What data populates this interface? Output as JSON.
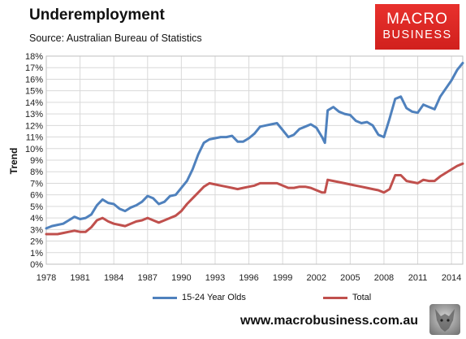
{
  "title": "Underemployment",
  "subtitle": "Source: Australian Bureau of Statistics",
  "logo": {
    "line1": "MACRO",
    "line2": "BUSINESS"
  },
  "footer_url": "www.macrobusiness.com.au",
  "colors": {
    "youth": "#4f81bd",
    "total": "#c0504d",
    "grid": "#d9d9d9",
    "logo": "#e8312d"
  },
  "chart_data": {
    "type": "line",
    "ylabel": "Trend",
    "xlim": [
      1978,
      2015
    ],
    "ylim": [
      0,
      18
    ],
    "yticks": [
      "0%",
      "1%",
      "2%",
      "3%",
      "4%",
      "5%",
      "6%",
      "7%",
      "8%",
      "9%",
      "10%",
      "11%",
      "12%",
      "13%",
      "14%",
      "15%",
      "16%",
      "17%",
      "18%"
    ],
    "xticks": [
      "1978",
      "1981",
      "1984",
      "1987",
      "1990",
      "1993",
      "1996",
      "1999",
      "2002",
      "2005",
      "2008",
      "2011",
      "2014"
    ],
    "grid": true,
    "legend_position": "bottom",
    "series": [
      {
        "name": "15-24 Year Olds",
        "color": "#4f81bd",
        "x": [
          1978,
          1978.5,
          1979,
          1979.5,
          1980,
          1980.5,
          1981,
          1981.5,
          1982,
          1982.5,
          1983,
          1983.5,
          1984,
          1984.5,
          1985,
          1985.5,
          1986,
          1986.5,
          1987,
          1987.5,
          1988,
          1988.5,
          1989,
          1989.5,
          1990,
          1990.5,
          1991,
          1991.5,
          1992,
          1992.5,
          1993,
          1993.5,
          1994,
          1994.5,
          1995,
          1995.5,
          1996,
          1996.5,
          1997,
          1997.5,
          1998,
          1998.5,
          1999,
          1999.5,
          2000,
          2000.5,
          2001,
          2001.5,
          2002,
          2002.5,
          2002.75,
          2003,
          2003.5,
          2004,
          2004.5,
          2005,
          2005.5,
          2006,
          2006.5,
          2007,
          2007.5,
          2008,
          2008.5,
          2009,
          2009.5,
          2010,
          2010.5,
          2011,
          2011.5,
          2012,
          2012.5,
          2013,
          2013.5,
          2014,
          2014.5,
          2015
        ],
        "values": [
          3.1,
          3.3,
          3.4,
          3.5,
          3.8,
          4.1,
          3.9,
          4.0,
          4.3,
          5.1,
          5.6,
          5.3,
          5.2,
          4.8,
          4.6,
          4.9,
          5.1,
          5.4,
          5.9,
          5.7,
          5.2,
          5.4,
          5.9,
          6.0,
          6.6,
          7.2,
          8.2,
          9.5,
          10.5,
          10.8,
          10.9,
          11.0,
          11.0,
          11.1,
          10.6,
          10.6,
          10.9,
          11.3,
          11.9,
          12.0,
          12.1,
          12.2,
          11.6,
          11.0,
          11.2,
          11.7,
          11.9,
          12.1,
          11.8,
          11.0,
          10.5,
          13.3,
          13.6,
          13.2,
          13.0,
          12.9,
          12.4,
          12.2,
          12.3,
          12.0,
          11.2,
          11.0,
          12.6,
          14.3,
          14.5,
          13.5,
          13.2,
          13.1,
          13.8,
          13.6,
          13.4,
          14.5,
          15.2,
          15.9,
          16.8,
          17.4
        ]
      },
      {
        "name": "Total",
        "color": "#c0504d",
        "x": [
          1978,
          1978.5,
          1979,
          1979.5,
          1980,
          1980.5,
          1981,
          1981.5,
          1982,
          1982.5,
          1983,
          1983.5,
          1984,
          1984.5,
          1985,
          1985.5,
          1986,
          1986.5,
          1987,
          1987.5,
          1988,
          1988.5,
          1989,
          1989.5,
          1990,
          1990.5,
          1991,
          1991.5,
          1992,
          1992.5,
          1993,
          1993.5,
          1994,
          1994.5,
          1995,
          1995.5,
          1996,
          1996.5,
          1997,
          1997.5,
          1998,
          1998.5,
          1999,
          1999.5,
          2000,
          2000.5,
          2001,
          2001.5,
          2002,
          2002.5,
          2002.75,
          2003,
          2003.5,
          2004,
          2004.5,
          2005,
          2005.5,
          2006,
          2006.5,
          2007,
          2007.5,
          2008,
          2008.5,
          2009,
          2009.5,
          2010,
          2010.5,
          2011,
          2011.5,
          2012,
          2012.5,
          2013,
          2013.5,
          2014,
          2014.5,
          2015
        ],
        "values": [
          2.6,
          2.6,
          2.6,
          2.7,
          2.8,
          2.9,
          2.8,
          2.8,
          3.2,
          3.8,
          4.0,
          3.7,
          3.5,
          3.4,
          3.3,
          3.5,
          3.7,
          3.8,
          4.0,
          3.8,
          3.6,
          3.8,
          4.0,
          4.2,
          4.6,
          5.2,
          5.7,
          6.2,
          6.7,
          7.0,
          6.9,
          6.8,
          6.7,
          6.6,
          6.5,
          6.6,
          6.7,
          6.8,
          7.0,
          7.0,
          7.0,
          7.0,
          6.8,
          6.6,
          6.6,
          6.7,
          6.7,
          6.6,
          6.4,
          6.2,
          6.2,
          7.3,
          7.2,
          7.1,
          7.0,
          6.9,
          6.8,
          6.7,
          6.6,
          6.5,
          6.4,
          6.2,
          6.5,
          7.7,
          7.7,
          7.2,
          7.1,
          7.0,
          7.3,
          7.2,
          7.2,
          7.6,
          7.9,
          8.2,
          8.5,
          8.7
        ]
      }
    ]
  }
}
